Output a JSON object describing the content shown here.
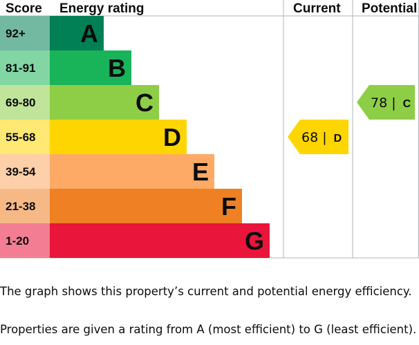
{
  "chart_data": {
    "type": "table",
    "headers": {
      "score": "Score",
      "rating": "Energy rating",
      "current": "Current",
      "potential": "Potential"
    },
    "bands": [
      {
        "score": "92+",
        "letter": "A",
        "color": "#008054"
      },
      {
        "score": "81-91",
        "letter": "B",
        "color": "#19b459"
      },
      {
        "score": "69-80",
        "letter": "C",
        "color": "#8dce46"
      },
      {
        "score": "55-68",
        "letter": "D",
        "color": "#ffd500"
      },
      {
        "score": "39-54",
        "letter": "E",
        "color": "#fcaa65"
      },
      {
        "score": "21-38",
        "letter": "F",
        "color": "#ef8023"
      },
      {
        "score": "1-20",
        "letter": "G",
        "color": "#e9153b"
      }
    ],
    "current": {
      "value": 68,
      "letter": "D",
      "color": "#ffd500"
    },
    "potential": {
      "value": 78,
      "letter": "C",
      "color": "#8dce46"
    }
  },
  "text": {
    "paragraph_1": "The graph shows this property’s current and potential energy efficiency.",
    "paragraph_2": "Properties are given a rating from A (most efficient) to G (least efficient)."
  }
}
